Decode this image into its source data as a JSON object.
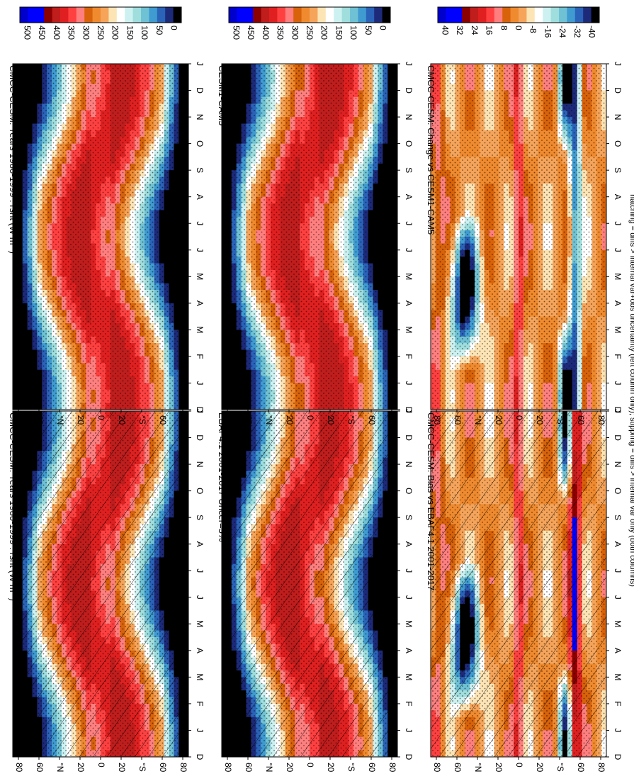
{
  "footer_note": "hatching = diffs > internal var+obs uncertainty (left column only); stippling = diffs > internal var only (both columns)",
  "colors": {
    "abs_scale": [
      "#0000cc",
      "#0000ff",
      "#0000ff",
      "#8b0000",
      "#c01d1d",
      "#e02020",
      "#ff4040",
      "#ff7f7f",
      "#d8620a",
      "#f08a2e",
      "#f5a45a",
      "#fce4b5",
      "#ffffff",
      "#cdf1f1",
      "#9fdedd",
      "#6fc2d4",
      "#3f9bd0",
      "#2a63b8",
      "#1d2a7a",
      "#000000"
    ],
    "diff_scale": [
      "#0000cc",
      "#0000ff",
      "#0000ff",
      "#8b0000",
      "#c01d1d",
      "#e02020",
      "#ff4040",
      "#ff7f7f",
      "#d8620a",
      "#f08a2e",
      "#f5a45a",
      "#fce4b5",
      "#ffffff",
      "#cdf1f1",
      "#9fdedd",
      "#6fc2d4",
      "#3f9bd0",
      "#2a63b8",
      "#1d2a7a",
      "#000000"
    ]
  },
  "chart_data": [
    {
      "type": "heatmap",
      "title": "CMCC-CESM: Years 1980-1999 : rsnt (W m",
      "title_sup": "-2",
      "title_tail": ")",
      "xlabel": "",
      "ylabel": "",
      "x_ticks": [
        "D",
        "J",
        "F",
        "M",
        "A",
        "M",
        "J",
        "J",
        "A",
        "S",
        "O",
        "N",
        "D",
        "J"
      ],
      "y_ticks": [
        "80",
        "60",
        "°N",
        "20",
        "0",
        "20",
        "°S",
        "60",
        "80"
      ],
      "y_range": [
        -90,
        90
      ],
      "colorbar_ticks": [
        "500",
        "450",
        "400",
        "350",
        "300",
        "250",
        "200",
        "150",
        "100",
        "50",
        "0"
      ],
      "field": "abs",
      "model_shift": 0,
      "hatching": true,
      "stippling": true
    },
    {
      "type": "heatmap",
      "title": "CMCC-CESM: Years 1980-1999 : rsnt (W m",
      "title_sup": "-2",
      "title_tail": ")",
      "xlabel": "",
      "ylabel": "",
      "x_ticks": [
        "D",
        "J",
        "F",
        "M",
        "A",
        "M",
        "J",
        "J",
        "A",
        "S",
        "O",
        "N",
        "D",
        "J"
      ],
      "y_ticks": [
        "80",
        "60",
        "°N",
        "20",
        "0",
        "20",
        "°S",
        "60",
        "80"
      ],
      "y_range": [
        -90,
        90
      ],
      "colorbar_ticks": [
        "500",
        "450",
        "400",
        "350",
        "300",
        "250",
        "200",
        "150",
        "100",
        "50",
        "0"
      ],
      "field": "abs",
      "model_shift": 0,
      "hatching": false,
      "stippling": true
    },
    {
      "type": "heatmap",
      "title": "EBAF4.1 2001-2017 Uncer=5%",
      "xlabel": "",
      "ylabel": "",
      "x_ticks": [
        "D",
        "J",
        "F",
        "M",
        "A",
        "M",
        "J",
        "J",
        "A",
        "S",
        "O",
        "N",
        "D",
        "J"
      ],
      "y_ticks": [
        "80",
        "60",
        "°N",
        "20",
        "0",
        "20",
        "°S",
        "60",
        "80"
      ],
      "y_range": [
        -90,
        90
      ],
      "colorbar_ticks": [
        "500",
        "450",
        "400",
        "350",
        "300",
        "250",
        "200",
        "150",
        "100",
        "50",
        "0"
      ],
      "field": "abs",
      "model_shift": 6,
      "hatching": true,
      "stippling": true
    },
    {
      "type": "heatmap",
      "title": "CESM1-CAM5",
      "xlabel": "",
      "ylabel": "",
      "x_ticks": [
        "D",
        "J",
        "F",
        "M",
        "A",
        "M",
        "J",
        "J",
        "A",
        "S",
        "O",
        "N",
        "D",
        "J"
      ],
      "y_ticks": [
        "80",
        "60",
        "°N",
        "20",
        "0",
        "20",
        "°S",
        "60",
        "80"
      ],
      "y_range": [
        -90,
        90
      ],
      "colorbar_ticks": [
        "500",
        "450",
        "400",
        "350",
        "300",
        "250",
        "200",
        "150",
        "100",
        "50",
        "0"
      ],
      "field": "abs",
      "model_shift": -4,
      "hatching": false,
      "stippling": true
    },
    {
      "type": "heatmap",
      "title": "CMCC-CESM: Bias vs EBAF4.1 2001-2017",
      "xlabel": "",
      "ylabel": "",
      "x_ticks": [
        "D",
        "J",
        "F",
        "M",
        "A",
        "M",
        "J",
        "J",
        "A",
        "S",
        "O",
        "N",
        "D",
        "J"
      ],
      "y_ticks": [
        "80",
        "60",
        "°N",
        "20",
        "0",
        "20",
        "°S",
        "60",
        "80"
      ],
      "y_range": [
        -90,
        90
      ],
      "colorbar_ticks": [
        "40",
        "32",
        "24",
        "16",
        "8",
        "0",
        "-8",
        "-16",
        "-24",
        "-32",
        "-40"
      ],
      "field": "diff",
      "hatching": true,
      "stippling": true
    },
    {
      "type": "heatmap",
      "title": "CMCC-CESM: Change vs CESM1-CAM5",
      "xlabel": "",
      "ylabel": "",
      "x_ticks": [
        "D",
        "J",
        "F",
        "M",
        "A",
        "M",
        "J",
        "J",
        "A",
        "S",
        "O",
        "N",
        "D",
        "J"
      ],
      "y_ticks": [
        "80",
        "60",
        "°N",
        "20",
        "0",
        "20",
        "°S",
        "60",
        "80"
      ],
      "y_range": [
        -90,
        90
      ],
      "colorbar_ticks": [
        "40",
        "32",
        "24",
        "16",
        "8",
        "0",
        "-8",
        "-16",
        "-24",
        "-32",
        "-40"
      ],
      "field": "diff2",
      "hatching": false,
      "stippling": true
    }
  ]
}
